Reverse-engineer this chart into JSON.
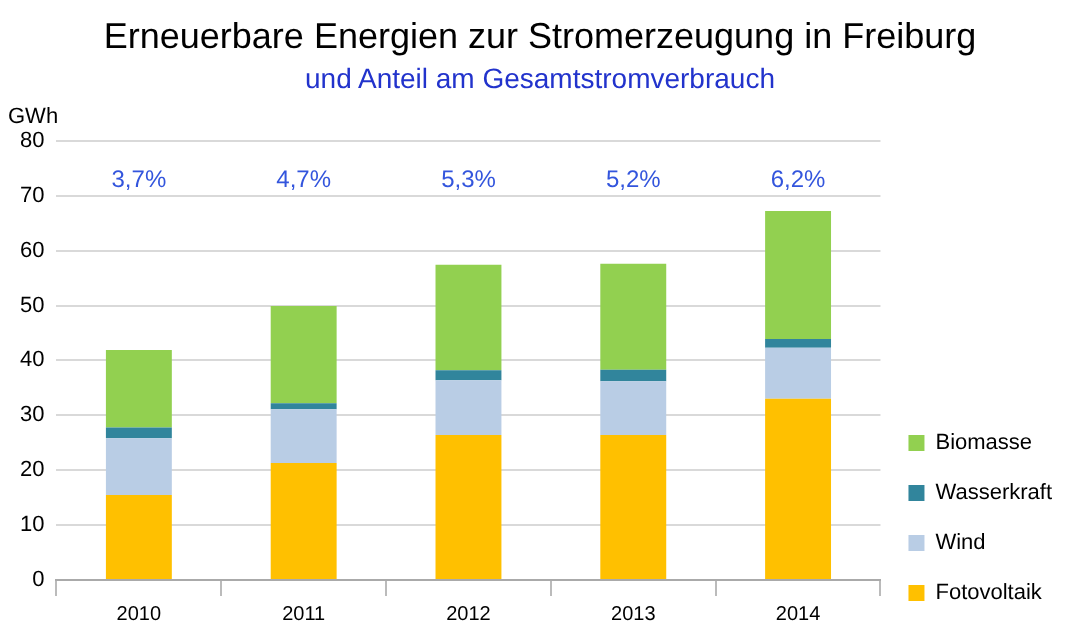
{
  "chart_data": {
    "type": "bar",
    "title": "Erneuerbare Energien zur Stromerzeugung in Freiburg",
    "subtitle": "und Anteil am Gesamtstromverbrauch",
    "ylabel": "GWh",
    "categories": [
      "2010",
      "2011",
      "2012",
      "2013",
      "2014"
    ],
    "stacked": true,
    "series": [
      {
        "name": "Fotovoltaik",
        "color": "#ffc000",
        "values": [
          15.5,
          21.3,
          26.4,
          26.4,
          33.0
        ]
      },
      {
        "name": "Wind",
        "color": "#b9cde5",
        "values": [
          10.3,
          9.8,
          10.0,
          9.8,
          9.3
        ]
      },
      {
        "name": "Wasserkraft",
        "color": "#31859c",
        "values": [
          2.0,
          1.1,
          1.8,
          2.1,
          1.6
        ]
      },
      {
        "name": "Biomasse",
        "color": "#92d050",
        "values": [
          14.1,
          17.7,
          19.2,
          19.3,
          23.3
        ]
      }
    ],
    "ylim": [
      0,
      80
    ],
    "yticks": [
      0,
      10,
      20,
      30,
      40,
      50,
      60,
      70,
      80
    ],
    "grid": "y",
    "legend": "right",
    "annotations": [
      "3,7%",
      "4,7%",
      "5,3%",
      "5,2%",
      "6,2%"
    ]
  }
}
